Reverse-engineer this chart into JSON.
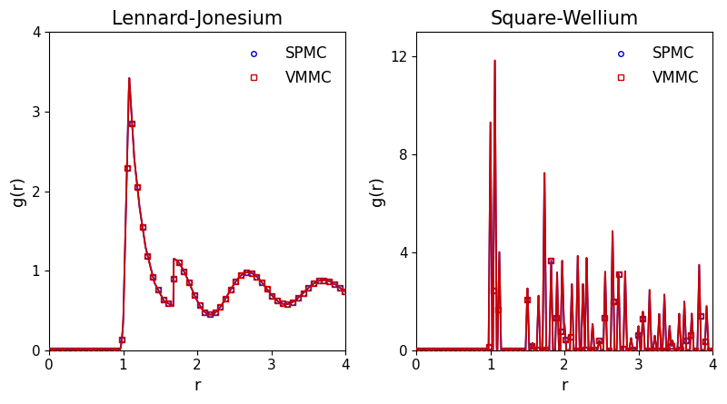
{
  "title_lj": "Lennard-Jonesium",
  "title_sw": "Square-Wellium",
  "xlabel": "r",
  "ylabel": "g(r)",
  "lj_ylim": [
    0,
    4
  ],
  "sw_ylim": [
    0,
    13
  ],
  "lj_xlim": [
    0,
    4
  ],
  "sw_xlim": [
    0,
    4
  ],
  "lj_yticks": [
    0,
    1,
    2,
    3,
    4
  ],
  "sw_yticks": [
    0,
    4,
    8,
    12
  ],
  "xticks": [
    0,
    1,
    2,
    3,
    4
  ],
  "spmc_color": "#0000cc",
  "vmmc_color": "#cc0000",
  "background": "#ffffff",
  "legend_spmc": "SPMC",
  "legend_vmmc": "VMMC",
  "spmc_marker": "o",
  "vmmc_marker": "s",
  "marker_size": 4,
  "line_width": 1.3,
  "title_fontsize": 15,
  "label_fontsize": 13,
  "tick_fontsize": 11,
  "legend_fontsize": 12
}
